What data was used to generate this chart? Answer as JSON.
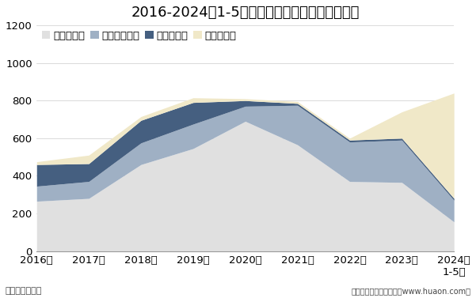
{
  "title": "2016-2024年1-5月青海省各发电类型发电量统计",
  "xlabel_bottom": "单位：亿千瓦时",
  "xlabel_right": "制图：华经产业研究院（www.huaon.com）",
  "years": [
    "2016年",
    "2017年",
    "2018年",
    "2019年",
    "2020年",
    "2021年",
    "2022年",
    "2023年",
    "2024年\n1-5月"
  ],
  "ylim": [
    0,
    1200
  ],
  "yticks": [
    0,
    200,
    400,
    600,
    800,
    1000,
    1200
  ],
  "series": [
    {
      "name": "水力发电量",
      "values": [
        265,
        280,
        460,
        545,
        690,
        565,
        370,
        365,
        155
      ],
      "color": "#e0e0e0"
    },
    {
      "name": "太阳能发电量",
      "values": [
        80,
        90,
        115,
        130,
        80,
        210,
        210,
        225,
        115
      ],
      "color": "#9fb0c4"
    },
    {
      "name": "火力发电量",
      "values": [
        115,
        95,
        120,
        115,
        30,
        10,
        10,
        10,
        10
      ],
      "color": "#455f80"
    },
    {
      "name": "风力发电量",
      "values": [
        15,
        45,
        20,
        25,
        10,
        10,
        10,
        140,
        560
      ],
      "color": "#f0e8c8"
    }
  ],
  "background_color": "#ffffff",
  "title_fontsize": 13,
  "legend_fontsize": 9.5,
  "tick_fontsize": 9.5
}
